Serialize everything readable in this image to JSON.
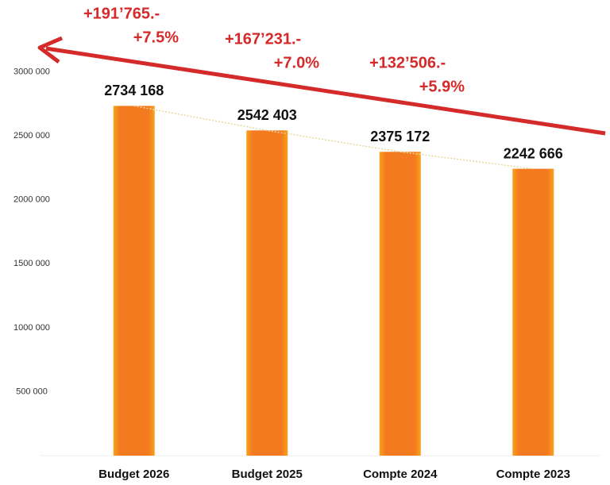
{
  "chart_data": {
    "type": "bar",
    "categories": [
      "Budget 2026",
      "Budget 2025",
      "Compte 2024",
      "Compte 2023"
    ],
    "values": [
      2734168,
      2542403,
      2375172,
      2242666
    ],
    "value_labels": [
      "2734 168",
      "2542 403",
      "2375 172",
      "2242 666"
    ],
    "color": "#f47a20",
    "ylim": [
      0,
      3500000
    ],
    "yticks": [
      {
        "value": 500000,
        "label": "500 000"
      },
      {
        "value": 1000000,
        "label": "1000 000"
      },
      {
        "value": 1500000,
        "label": "1500 000"
      },
      {
        "value": 2000000,
        "label": "2000 000"
      },
      {
        "value": 2500000,
        "label": "2500 000"
      },
      {
        "value": 3000000,
        "label": "3000 000"
      }
    ],
    "annotations": [
      {
        "amount": "+191’765.-",
        "percent": "+7.5%"
      },
      {
        "amount": "+167’231.-",
        "percent": "+7.0%"
      },
      {
        "amount": "+132’506.-",
        "percent": "+5.9%"
      }
    ],
    "annotation_color": "#d42a2a"
  }
}
